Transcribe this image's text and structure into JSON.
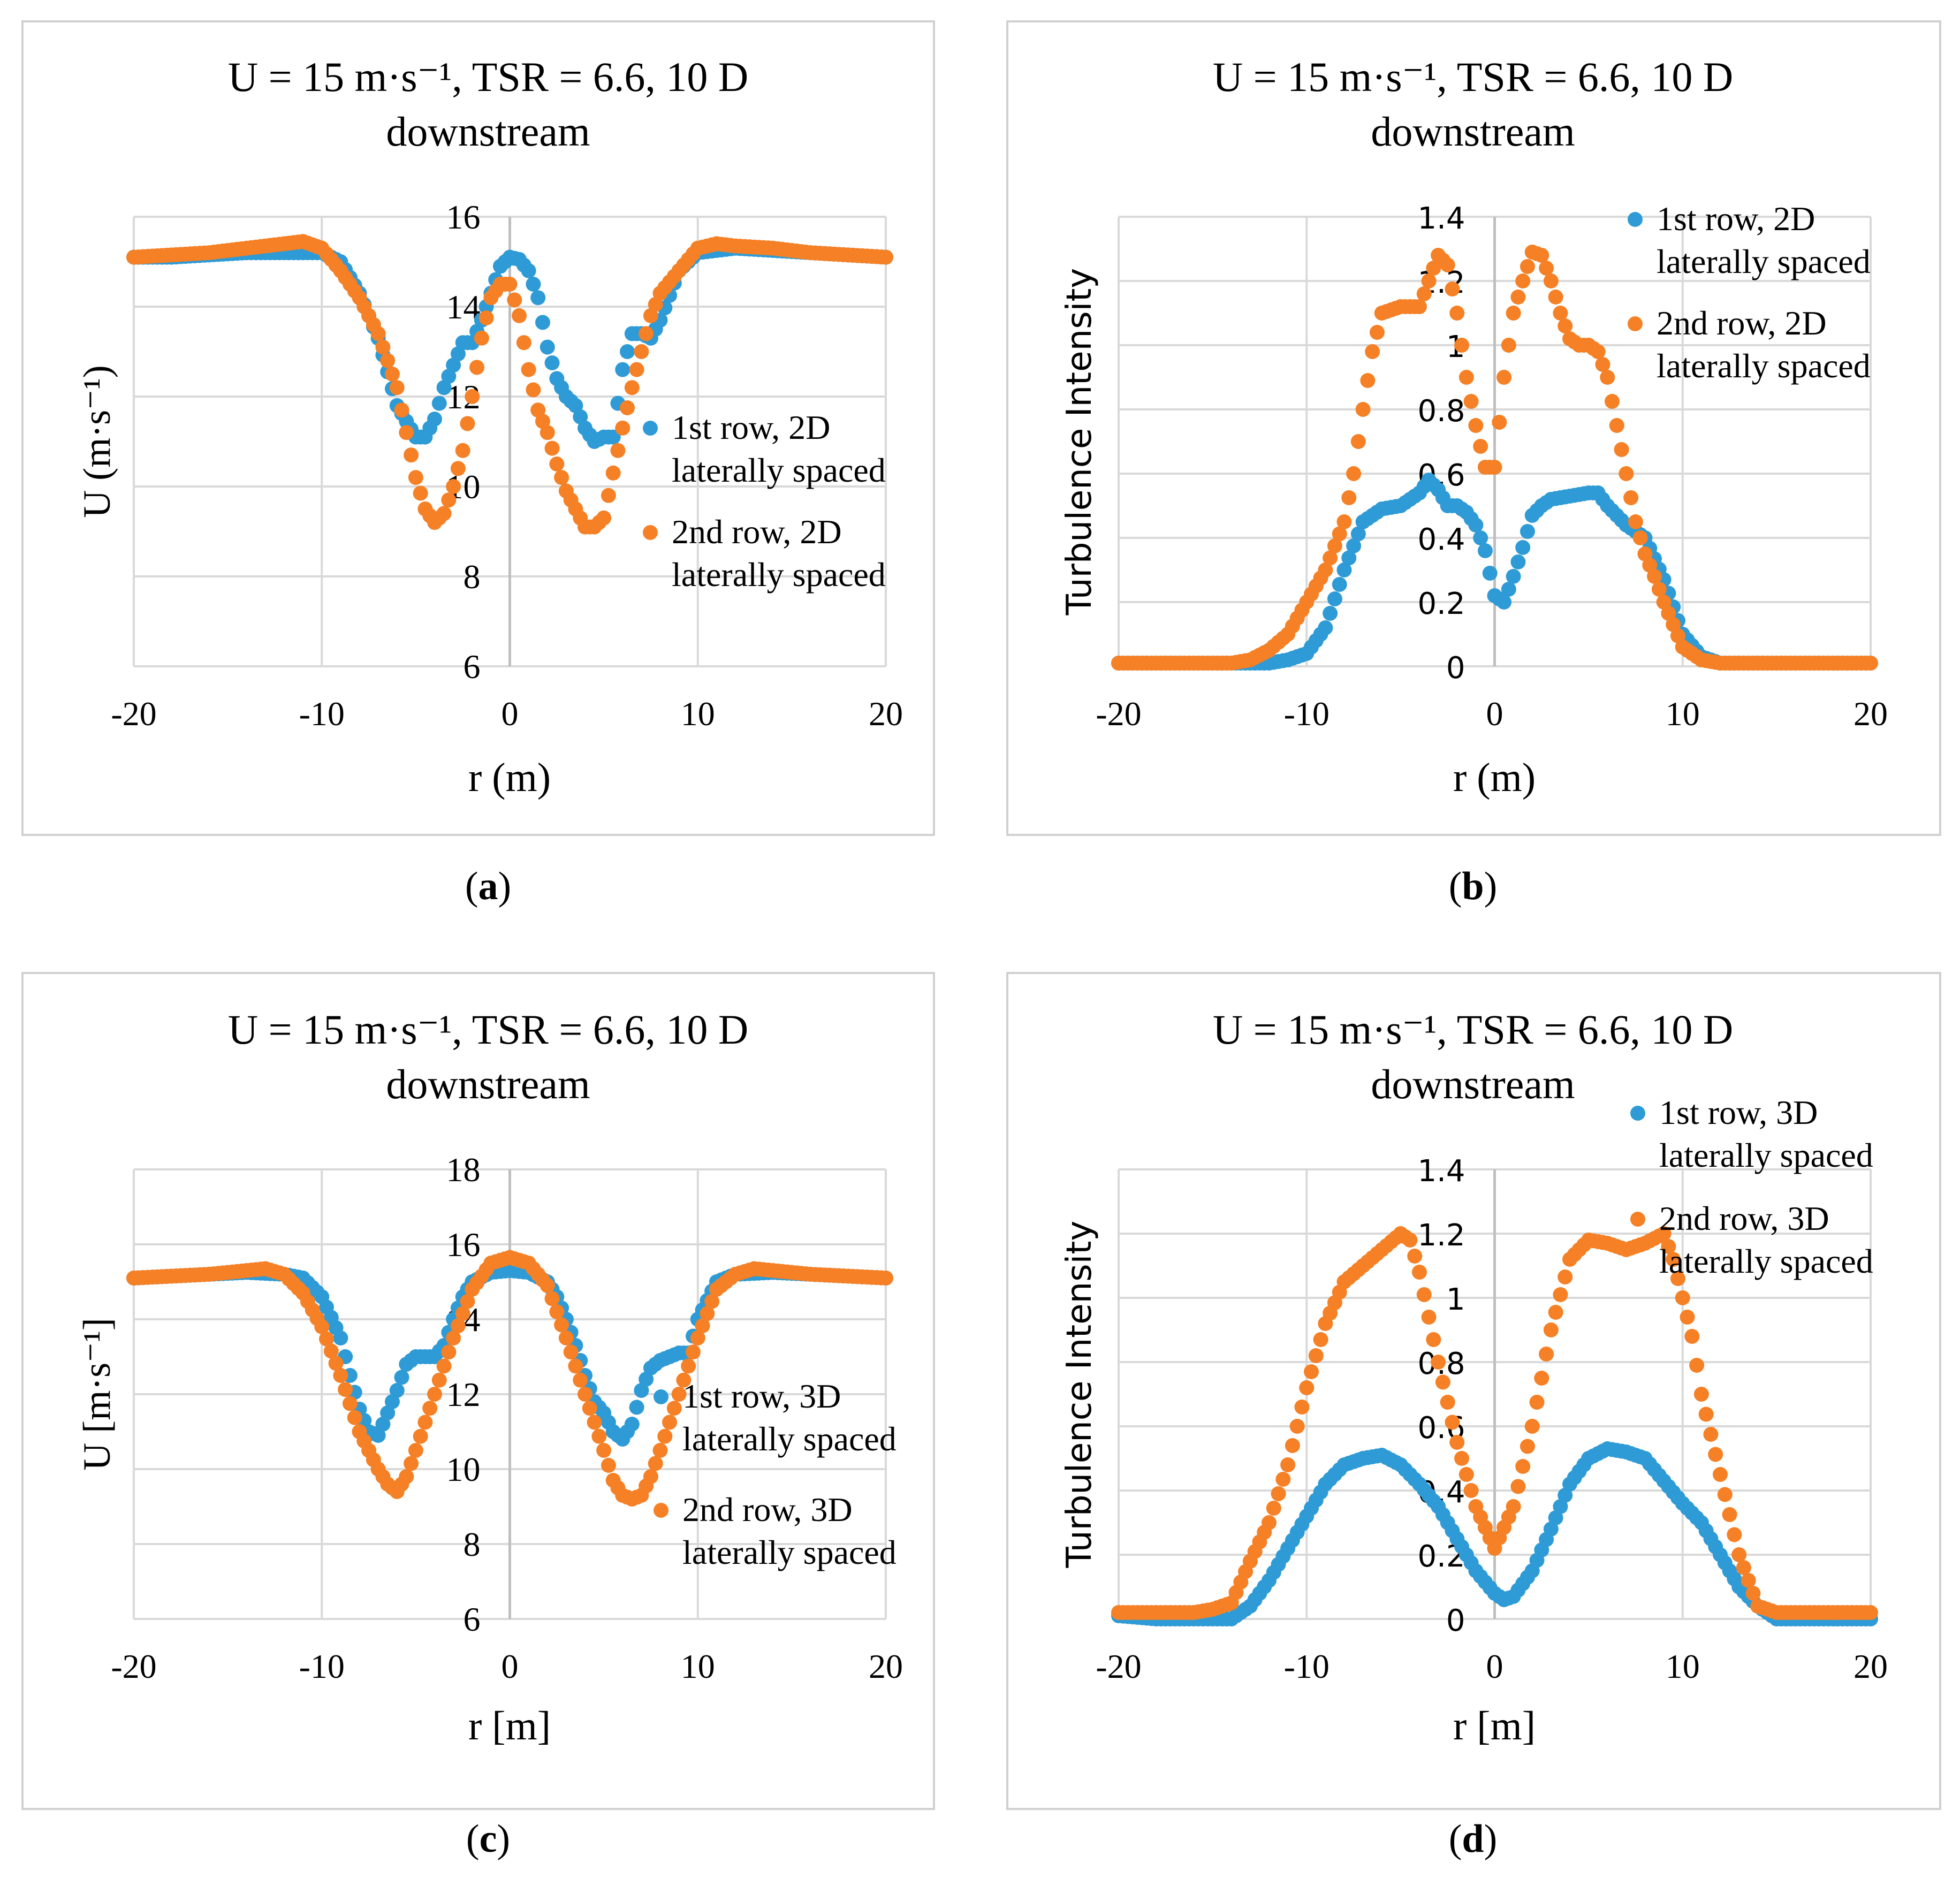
{
  "colors": {
    "series1": "#2E9BD6",
    "series2": "#F58025",
    "gridline": "#D9D9D9",
    "zeroline": "#BFBFBF",
    "frame": "#D0D0D0"
  },
  "chart_data": [
    {
      "panel": "(a)",
      "panel_letter": "a",
      "type": "scatter",
      "title": "U = 15 m·s⁻¹, TSR = 6.6, 10 D",
      "title_line2": "downstream",
      "xlabel": "r (m)",
      "ylabel": "U (m·s⁻¹)",
      "xlim": [
        -20,
        20
      ],
      "ylim": [
        6,
        16
      ],
      "xticks": [
        -20,
        -10,
        0,
        10,
        20
      ],
      "xtick_labels": [
        "-20",
        "-10",
        "0",
        "10",
        "20"
      ],
      "yticks": [
        6,
        8,
        10,
        12,
        14,
        16
      ],
      "ytick_labels": [
        "6",
        "8",
        "10",
        "12",
        "14",
        "16"
      ],
      "legend_position": "right",
      "series": [
        {
          "name": "1st row, 2D laterally spaced",
          "name_line1": "1st row, 2D",
          "name_line2": "laterally spaced",
          "color": "#2E9BD6",
          "x": [
            -20,
            -18,
            -16,
            -14,
            -12,
            -10,
            -9,
            -8,
            -7,
            -6,
            -5,
            -4.5,
            -4,
            -3.5,
            -3,
            -2.5,
            -2,
            -1.5,
            -1,
            -0.5,
            0,
            0.5,
            1,
            1.5,
            2,
            2.5,
            3,
            3.5,
            4,
            4.5,
            5,
            5.5,
            6,
            6.5,
            7,
            7.5,
            8,
            9,
            10,
            12,
            14,
            16,
            18,
            20
          ],
          "y": [
            15.1,
            15.1,
            15.15,
            15.2,
            15.2,
            15.2,
            15.0,
            14.3,
            13.3,
            11.8,
            11.1,
            11.1,
            11.5,
            12.2,
            12.7,
            13.2,
            13.2,
            13.7,
            14.3,
            14.9,
            15.1,
            15.05,
            14.8,
            14.2,
            13.1,
            12.4,
            12.0,
            11.8,
            11.3,
            11.0,
            11.1,
            11.1,
            12.6,
            13.4,
            13.4,
            13.3,
            13.7,
            14.8,
            15.2,
            15.3,
            15.25,
            15.2,
            15.15,
            15.1
          ]
        },
        {
          "name": "2nd row, 2D laterally spaced",
          "name_line1": "2nd row, 2D",
          "name_line2": "laterally spaced",
          "color": "#F58025",
          "x": [
            -20,
            -18,
            -16,
            -14,
            -12,
            -11,
            -10,
            -9,
            -8,
            -7,
            -6,
            -5.5,
            -5,
            -4.5,
            -4,
            -3.5,
            -3,
            -2.5,
            -2,
            -1.5,
            -1,
            -0.5,
            0,
            0.5,
            1,
            1.5,
            2,
            2.5,
            3,
            3.5,
            4,
            4.5,
            5,
            5.5,
            6,
            6.5,
            7,
            7.5,
            8,
            9,
            10,
            11,
            12,
            14,
            16,
            18,
            20
          ],
          "y": [
            15.1,
            15.15,
            15.2,
            15.3,
            15.4,
            15.45,
            15.3,
            14.8,
            14.2,
            13.4,
            12.2,
            11.2,
            10.2,
            9.5,
            9.2,
            9.4,
            10.0,
            10.8,
            12.0,
            13.3,
            14.2,
            14.5,
            14.5,
            13.8,
            12.6,
            11.7,
            11.2,
            10.5,
            9.9,
            9.5,
            9.1,
            9.1,
            9.3,
            10.3,
            11.3,
            12.2,
            13.0,
            13.8,
            14.3,
            14.8,
            15.3,
            15.4,
            15.35,
            15.3,
            15.2,
            15.15,
            15.1
          ]
        }
      ]
    },
    {
      "panel": "(b)",
      "panel_letter": "b",
      "type": "scatter",
      "title": "U = 15 m·s⁻¹, TSR = 6.6, 10 D",
      "title_line2": "downstream",
      "xlabel": "r (m)",
      "ylabel": "Turbulence Intensity",
      "xlim": [
        -20,
        20
      ],
      "ylim": [
        0,
        1.4
      ],
      "xticks": [
        -20,
        -10,
        0,
        10,
        20
      ],
      "xtick_labels": [
        "-20",
        "-10",
        "0",
        "10",
        "20"
      ],
      "yticks": [
        0,
        0.2,
        0.4,
        0.6,
        0.8,
        1,
        1.2,
        1.4
      ],
      "ytick_labels": [
        "0",
        "0.2",
        "0.4",
        "0.6",
        "0.8",
        "1",
        "1.2",
        "1.4"
      ],
      "legend_position": "top-right",
      "series": [
        {
          "name": "1st row, 2D laterally spaced",
          "name_line1": "1st row, 2D",
          "name_line2": "laterally spaced",
          "color": "#2E9BD6",
          "x": [
            -20,
            -18,
            -16,
            -14,
            -12,
            -11,
            -10,
            -9,
            -8,
            -7,
            -6,
            -5,
            -4,
            -3.5,
            -3,
            -2.5,
            -2,
            -1.5,
            -1,
            -0.5,
            0,
            0.5,
            1,
            1.5,
            2,
            2.5,
            3,
            4,
            5,
            5.5,
            6,
            7,
            8,
            9,
            10,
            11,
            12,
            14,
            16,
            18,
            20
          ],
          "y": [
            0.01,
            0.01,
            0.01,
            0.01,
            0.01,
            0.02,
            0.04,
            0.12,
            0.3,
            0.45,
            0.49,
            0.5,
            0.54,
            0.58,
            0.55,
            0.5,
            0.5,
            0.48,
            0.44,
            0.36,
            0.22,
            0.2,
            0.28,
            0.37,
            0.47,
            0.5,
            0.52,
            0.53,
            0.54,
            0.54,
            0.5,
            0.44,
            0.4,
            0.27,
            0.1,
            0.03,
            0.01,
            0.01,
            0.01,
            0.01,
            0.01
          ]
        },
        {
          "name": "2nd row, 2D laterally spaced",
          "name_line1": "2nd row, 2D",
          "name_line2": "laterally spaced",
          "color": "#F58025",
          "x": [
            -20,
            -18,
            -16,
            -14,
            -13,
            -12,
            -11,
            -10,
            -9,
            -8,
            -7.5,
            -7,
            -6.5,
            -6,
            -5,
            -4,
            -3.5,
            -3,
            -2.5,
            -2,
            -1.5,
            -1,
            -0.5,
            0,
            0.5,
            1,
            1.5,
            2,
            2.5,
            3,
            3.5,
            4,
            4.5,
            5,
            5.5,
            6,
            6.5,
            7,
            7.5,
            8,
            8.5,
            9,
            10,
            11,
            12,
            14,
            16,
            18,
            20
          ],
          "y": [
            0.01,
            0.01,
            0.01,
            0.01,
            0.02,
            0.05,
            0.1,
            0.2,
            0.3,
            0.45,
            0.6,
            0.8,
            0.98,
            1.1,
            1.12,
            1.12,
            1.2,
            1.28,
            1.25,
            1.1,
            0.9,
            0.75,
            0.62,
            0.62,
            0.9,
            1.1,
            1.2,
            1.29,
            1.28,
            1.2,
            1.1,
            1.02,
            1.0,
            1.0,
            0.98,
            0.9,
            0.75,
            0.6,
            0.45,
            0.35,
            0.28,
            0.2,
            0.06,
            0.02,
            0.01,
            0.01,
            0.01,
            0.01,
            0.01
          ]
        }
      ]
    },
    {
      "panel": "(c)",
      "panel_letter": "c",
      "type": "scatter",
      "title": "U = 15 m·s⁻¹, TSR = 6.6, 10 D",
      "title_line2": "downstream",
      "xlabel": "r [m]",
      "ylabel": "U [m·s⁻¹]",
      "xlim": [
        -20,
        20
      ],
      "ylim": [
        6,
        18
      ],
      "xticks": [
        -20,
        -10,
        0,
        10,
        20
      ],
      "xtick_labels": [
        "-20",
        "-10",
        "0",
        "10",
        "20"
      ],
      "yticks": [
        6,
        8,
        10,
        12,
        14,
        16,
        18
      ],
      "ytick_labels": [
        "6",
        "8",
        "10",
        "12",
        "14",
        "16",
        "18"
      ],
      "legend_position": "right",
      "series": [
        {
          "name": "1st row, 3D laterally spaced",
          "name_line1": "1st row, 3D",
          "name_line2": "laterally spaced",
          "color": "#2E9BD6",
          "x": [
            -20,
            -18,
            -16,
            -14,
            -12,
            -11,
            -10,
            -9,
            -8.5,
            -8,
            -7.5,
            -7,
            -6.5,
            -6,
            -5.5,
            -5,
            -4,
            -3.5,
            -3,
            -2.5,
            -2,
            -1,
            0,
            1,
            2,
            2.5,
            3,
            3.5,
            4,
            4.5,
            5,
            5.5,
            6,
            6.5,
            7,
            7.5,
            8,
            8.5,
            9,
            9.5,
            10,
            11,
            12,
            14,
            16,
            18,
            20
          ],
          "y": [
            15.1,
            15.15,
            15.2,
            15.25,
            15.2,
            15.1,
            14.6,
            13.5,
            12.5,
            11.6,
            11.0,
            10.9,
            11.5,
            12.1,
            12.8,
            13.0,
            13.0,
            13.3,
            14.0,
            14.6,
            15.0,
            15.25,
            15.3,
            15.25,
            15.0,
            14.6,
            14.0,
            13.3,
            12.5,
            11.8,
            11.5,
            11.0,
            10.8,
            11.2,
            12.1,
            12.7,
            12.9,
            13.0,
            13.1,
            13.1,
            14.0,
            15.0,
            15.2,
            15.25,
            15.2,
            15.15,
            15.1
          ]
        },
        {
          "name": "2nd row, 3D laterally spaced",
          "name_line1": "2nd row, 3D",
          "name_line2": "laterally spaced",
          "color": "#F58025",
          "x": [
            -20,
            -18,
            -16,
            -14,
            -13,
            -12,
            -11,
            -10,
            -9,
            -8,
            -7,
            -6.5,
            -6,
            -5.5,
            -5,
            -4,
            -3,
            -2,
            -1,
            0,
            1,
            2,
            3,
            4,
            5,
            5.5,
            6,
            6.5,
            7,
            7.5,
            8,
            9,
            10,
            11,
            12,
            13,
            14,
            16,
            18,
            20
          ],
          "y": [
            15.1,
            15.15,
            15.2,
            15.3,
            15.35,
            15.2,
            14.7,
            13.8,
            12.5,
            11.0,
            10.0,
            9.6,
            9.4,
            9.8,
            10.5,
            12.0,
            13.5,
            14.8,
            15.5,
            15.65,
            15.5,
            14.9,
            13.5,
            12.0,
            10.5,
            9.7,
            9.3,
            9.2,
            9.3,
            9.8,
            10.5,
            12.0,
            13.5,
            14.8,
            15.2,
            15.35,
            15.3,
            15.2,
            15.15,
            15.1
          ]
        }
      ]
    },
    {
      "panel": "(d)",
      "panel_letter": "d",
      "type": "scatter",
      "title": "U = 15 m·s⁻¹, TSR = 6.6, 10 D",
      "title_line2": "downstream",
      "xlabel": "r [m]",
      "ylabel": "Turbulence Intensity",
      "xlim": [
        -20,
        20
      ],
      "ylim": [
        0,
        1.4
      ],
      "xticks": [
        -20,
        -10,
        0,
        10,
        20
      ],
      "xtick_labels": [
        "-20",
        "-10",
        "0",
        "10",
        "20"
      ],
      "yticks": [
        0,
        0.2,
        0.4,
        0.6,
        0.8,
        1,
        1.2,
        1.4
      ],
      "ytick_labels": [
        "0",
        "0.2",
        "0.4",
        "0.6",
        "0.8",
        "1",
        "1.2",
        "1.4"
      ],
      "legend_position": "top-right",
      "series": [
        {
          "name": "1st row, 3D laterally spaced",
          "name_line1": "1st row, 3D",
          "name_line2": "laterally spaced",
          "color": "#2E9BD6",
          "x": [
            -20,
            -18,
            -16,
            -15,
            -14,
            -13,
            -12,
            -11,
            -10,
            -9,
            -8,
            -7,
            -6,
            -5,
            -4,
            -3,
            -2,
            -1,
            0,
            0.5,
            1,
            2,
            3,
            4,
            5,
            6,
            7,
            8,
            9,
            10,
            11,
            12,
            13,
            14,
            15,
            16,
            18,
            20
          ],
          "y": [
            0.01,
            0.0,
            0.0,
            0.0,
            0.0,
            0.04,
            0.12,
            0.22,
            0.32,
            0.42,
            0.48,
            0.5,
            0.51,
            0.48,
            0.42,
            0.35,
            0.25,
            0.15,
            0.08,
            0.06,
            0.07,
            0.15,
            0.28,
            0.42,
            0.5,
            0.53,
            0.52,
            0.5,
            0.43,
            0.36,
            0.3,
            0.2,
            0.1,
            0.04,
            0.0,
            0.0,
            0.0,
            0.0
          ]
        },
        {
          "name": "2nd row, 3D laterally spaced",
          "name_line1": "2nd row, 3D",
          "name_line2": "laterally spaced",
          "color": "#F58025",
          "x": [
            -20,
            -18,
            -16,
            -15,
            -14,
            -13,
            -12,
            -11,
            -10,
            -9,
            -8,
            -7,
            -6,
            -5,
            -4.5,
            -4,
            -3,
            -2,
            -1,
            0,
            1,
            2,
            3,
            4,
            5,
            6,
            7,
            8,
            9,
            9.5,
            10,
            10.5,
            11,
            12,
            13,
            14,
            15,
            16,
            18,
            20
          ],
          "y": [
            0.02,
            0.02,
            0.02,
            0.03,
            0.05,
            0.18,
            0.3,
            0.48,
            0.72,
            0.92,
            1.05,
            1.1,
            1.15,
            1.2,
            1.18,
            1.08,
            0.8,
            0.55,
            0.35,
            0.22,
            0.35,
            0.6,
            0.9,
            1.12,
            1.18,
            1.17,
            1.15,
            1.17,
            1.2,
            1.12,
            1.0,
            0.88,
            0.7,
            0.45,
            0.2,
            0.04,
            0.02,
            0.02,
            0.02,
            0.02
          ]
        }
      ]
    }
  ]
}
